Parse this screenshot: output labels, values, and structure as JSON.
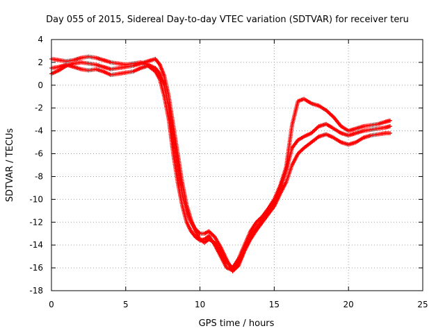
{
  "chart_data": {
    "type": "scatter",
    "title": "Day 055 of 2015, Sidereal Day-to-day VTEC variation (SDTVAR) for receiver teru",
    "xlabel": "GPS time / hours",
    "ylabel": "SDTVAR / TECUs",
    "xlim": [
      0,
      25
    ],
    "ylim": [
      -18,
      4
    ],
    "xticks": [
      0,
      5,
      10,
      15,
      20,
      25
    ],
    "yticks": [
      -18,
      -16,
      -14,
      -12,
      -10,
      -8,
      -6,
      -4,
      -2,
      0,
      2,
      4
    ],
    "grid": true,
    "legend": "none",
    "marker": "plus",
    "color": "#ff0000",
    "series": [
      {
        "x": [
          0.0,
          0.5,
          1.0,
          1.5,
          2.0,
          2.5,
          3.0,
          3.5,
          4.0,
          4.5,
          5.0,
          5.5,
          6.0,
          6.5,
          7.0,
          7.3,
          7.6,
          7.9,
          8.2,
          8.5,
          8.8,
          9.1,
          9.4,
          9.7,
          10.0,
          10.3,
          10.6,
          11.0,
          11.4,
          11.8,
          12.2,
          12.6,
          13.0,
          13.4,
          13.8,
          14.2,
          14.6,
          15.0,
          15.4,
          15.8,
          16.2,
          16.6,
          17.0,
          17.5,
          18.0,
          18.5,
          19.0,
          19.5,
          20.0,
          20.5,
          21.0,
          21.5,
          22.0,
          22.5,
          22.8
        ],
        "y": [
          2.3,
          2.2,
          2.1,
          2.2,
          2.4,
          2.5,
          2.4,
          2.2,
          2.0,
          1.9,
          1.8,
          1.9,
          2.0,
          1.8,
          1.5,
          1.0,
          0.0,
          -2.0,
          -4.5,
          -7.0,
          -9.5,
          -11.0,
          -12.0,
          -12.6,
          -13.0,
          -13.0,
          -12.8,
          -13.3,
          -14.2,
          -15.3,
          -16.3,
          -15.8,
          -14.5,
          -13.2,
          -12.5,
          -11.8,
          -11.0,
          -10.2,
          -9.0,
          -7.5,
          -5.5,
          -4.8,
          -4.5,
          -4.2,
          -3.6,
          -3.4,
          -3.8,
          -4.2,
          -4.4,
          -4.2,
          -4.0,
          -3.9,
          -3.8,
          -3.7,
          -3.6
        ]
      },
      {
        "x": [
          0.0,
          0.5,
          1.0,
          1.5,
          2.0,
          2.5,
          3.0,
          3.5,
          4.0,
          4.5,
          5.0,
          5.5,
          6.0,
          6.5,
          7.0,
          7.3,
          7.6,
          7.9,
          8.2,
          8.5,
          8.8,
          9.1,
          9.4,
          9.7,
          10.0,
          10.3,
          10.6,
          11.0,
          11.4,
          11.8,
          12.2,
          12.6,
          13.0,
          13.4,
          13.8,
          14.2,
          14.6,
          15.0,
          15.4,
          15.8,
          16.2,
          16.6,
          17.0,
          17.5,
          18.0,
          18.5,
          19.0,
          19.5,
          20.0,
          20.5,
          21.0,
          21.5,
          22.0,
          22.5,
          22.8
        ],
        "y": [
          1.5,
          1.6,
          1.8,
          1.6,
          1.4,
          1.3,
          1.4,
          1.2,
          0.9,
          1.0,
          1.1,
          1.2,
          1.5,
          1.7,
          1.2,
          0.5,
          -1.0,
          -3.0,
          -6.0,
          -8.5,
          -10.5,
          -12.0,
          -12.8,
          -13.3,
          -13.6,
          -13.5,
          -13.2,
          -14.0,
          -15.0,
          -16.0,
          -16.2,
          -15.6,
          -14.5,
          -13.5,
          -12.7,
          -12.0,
          -11.3,
          -10.6,
          -9.5,
          -8.5,
          -7.0,
          -6.0,
          -5.5,
          -5.0,
          -4.5,
          -4.3,
          -4.6,
          -5.0,
          -5.2,
          -5.0,
          -4.6,
          -4.4,
          -4.3,
          -4.2,
          -4.2
        ]
      },
      {
        "x": [
          0.0,
          0.5,
          1.0,
          1.5,
          2.0,
          2.5,
          3.0,
          3.5,
          4.0,
          4.5,
          5.0,
          5.5,
          6.0,
          6.5,
          7.0,
          7.3,
          7.6,
          7.9,
          8.2,
          8.5,
          8.8,
          9.1,
          9.4,
          9.7,
          10.0,
          10.3,
          10.6,
          11.0,
          11.4,
          11.8,
          12.2,
          12.6,
          13.0,
          13.4,
          13.8,
          14.2,
          14.6,
          15.0,
          15.4,
          15.8,
          16.2,
          16.6,
          17.0,
          17.5,
          18.0,
          18.5,
          19.0,
          19.5,
          20.0,
          20.5,
          21.0,
          21.5,
          22.0,
          22.5,
          22.8
        ],
        "y": [
          1.0,
          1.3,
          1.7,
          1.9,
          2.0,
          1.9,
          1.8,
          1.6,
          1.4,
          1.5,
          1.6,
          1.7,
          1.9,
          2.1,
          2.3,
          1.8,
          0.8,
          -1.0,
          -3.5,
          -6.0,
          -8.5,
          -10.5,
          -11.8,
          -12.8,
          -13.5,
          -13.8,
          -13.5,
          -13.8,
          -14.6,
          -15.5,
          -16.0,
          -15.2,
          -14.0,
          -12.8,
          -12.0,
          -11.5,
          -10.8,
          -10.0,
          -8.8,
          -7.2,
          -3.5,
          -1.4,
          -1.2,
          -1.6,
          -1.8,
          -2.2,
          -2.8,
          -3.6,
          -4.0,
          -3.8,
          -3.6,
          -3.5,
          -3.4,
          -3.2,
          -3.1
        ]
      }
    ]
  }
}
